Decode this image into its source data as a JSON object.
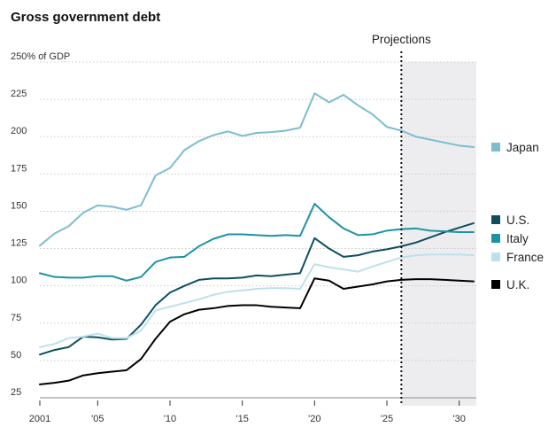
{
  "chart_data": {
    "type": "line",
    "title": "Gross government debt",
    "ylabel": "250% of GDP",
    "ylim": [
      25,
      250
    ],
    "yticks": [
      25,
      50,
      75,
      100,
      125,
      150,
      175,
      200,
      225,
      250
    ],
    "ytick_labels": [
      "25",
      "50",
      "75",
      "100",
      "125",
      "150",
      "175",
      "200",
      "225",
      "250% of GDP"
    ],
    "xlim": [
      2001,
      2031
    ],
    "xticks": [
      2001,
      2005,
      2010,
      2015,
      2020,
      2025,
      2030
    ],
    "xtick_labels": [
      "2001",
      "'05",
      "'10",
      "'15",
      "'20",
      "'25",
      "'30"
    ],
    "projection_start": 2026,
    "projection_label": "Projections",
    "grid": "horizontal-dotted",
    "legend_position": "right",
    "x": [
      2001,
      2002,
      2003,
      2004,
      2005,
      2006,
      2007,
      2008,
      2009,
      2010,
      2011,
      2012,
      2013,
      2014,
      2015,
      2016,
      2017,
      2018,
      2019,
      2020,
      2021,
      2022,
      2023,
      2024,
      2025,
      2026,
      2027,
      2028,
      2029,
      2030,
      2031
    ],
    "series": [
      {
        "name": "Japan",
        "color": "#7dbdd0",
        "values": [
          127,
          135,
          140,
          149,
          154,
          153,
          151,
          154,
          174,
          179,
          191,
          197,
          201,
          203.5,
          200.5,
          202.5,
          203,
          204,
          206,
          229,
          223,
          228,
          221,
          215,
          206.5,
          204,
          200,
          198,
          196,
          194,
          193
        ]
      },
      {
        "name": "U.S.",
        "color": "#0d4f5f",
        "values": [
          54,
          57,
          59,
          66,
          65.5,
          64,
          64.5,
          74,
          87,
          95.5,
          100,
          104,
          105,
          105,
          105.5,
          107,
          106.5,
          107.5,
          108.5,
          132,
          125,
          119.5,
          120.5,
          123,
          124.5,
          126.5,
          129,
          132.5,
          136,
          139,
          142
        ]
      },
      {
        "name": "Italy",
        "color": "#1c93a3",
        "values": [
          108.5,
          106,
          105.5,
          105.5,
          106.5,
          106.5,
          103.5,
          106,
          116,
          119,
          119.5,
          126.5,
          131.5,
          134.5,
          134.5,
          134,
          133.5,
          134,
          133.5,
          155,
          146,
          138.5,
          134,
          134.5,
          137,
          138,
          138.5,
          137,
          136.5,
          136,
          136
        ]
      },
      {
        "name": "France",
        "color": "#bfe0ea",
        "values": [
          59,
          61,
          65,
          66,
          68,
          65,
          65,
          70,
          83.5,
          86,
          88.5,
          91,
          94,
          96,
          97,
          98,
          98.5,
          98.5,
          98,
          114.5,
          112.5,
          111,
          109.5,
          113,
          116,
          119,
          120.5,
          121,
          121,
          121,
          120.5
        ]
      },
      {
        "name": "U.K.",
        "color": "#000000",
        "values": [
          34,
          35,
          36.5,
          40,
          41.5,
          42.5,
          43.5,
          51,
          64.5,
          76,
          81,
          84,
          85,
          86.5,
          87,
          87,
          86,
          85.5,
          85,
          105,
          103.5,
          98,
          99.5,
          101,
          103,
          104,
          104.5,
          104.5,
          104,
          103.5,
          103
        ]
      }
    ]
  }
}
